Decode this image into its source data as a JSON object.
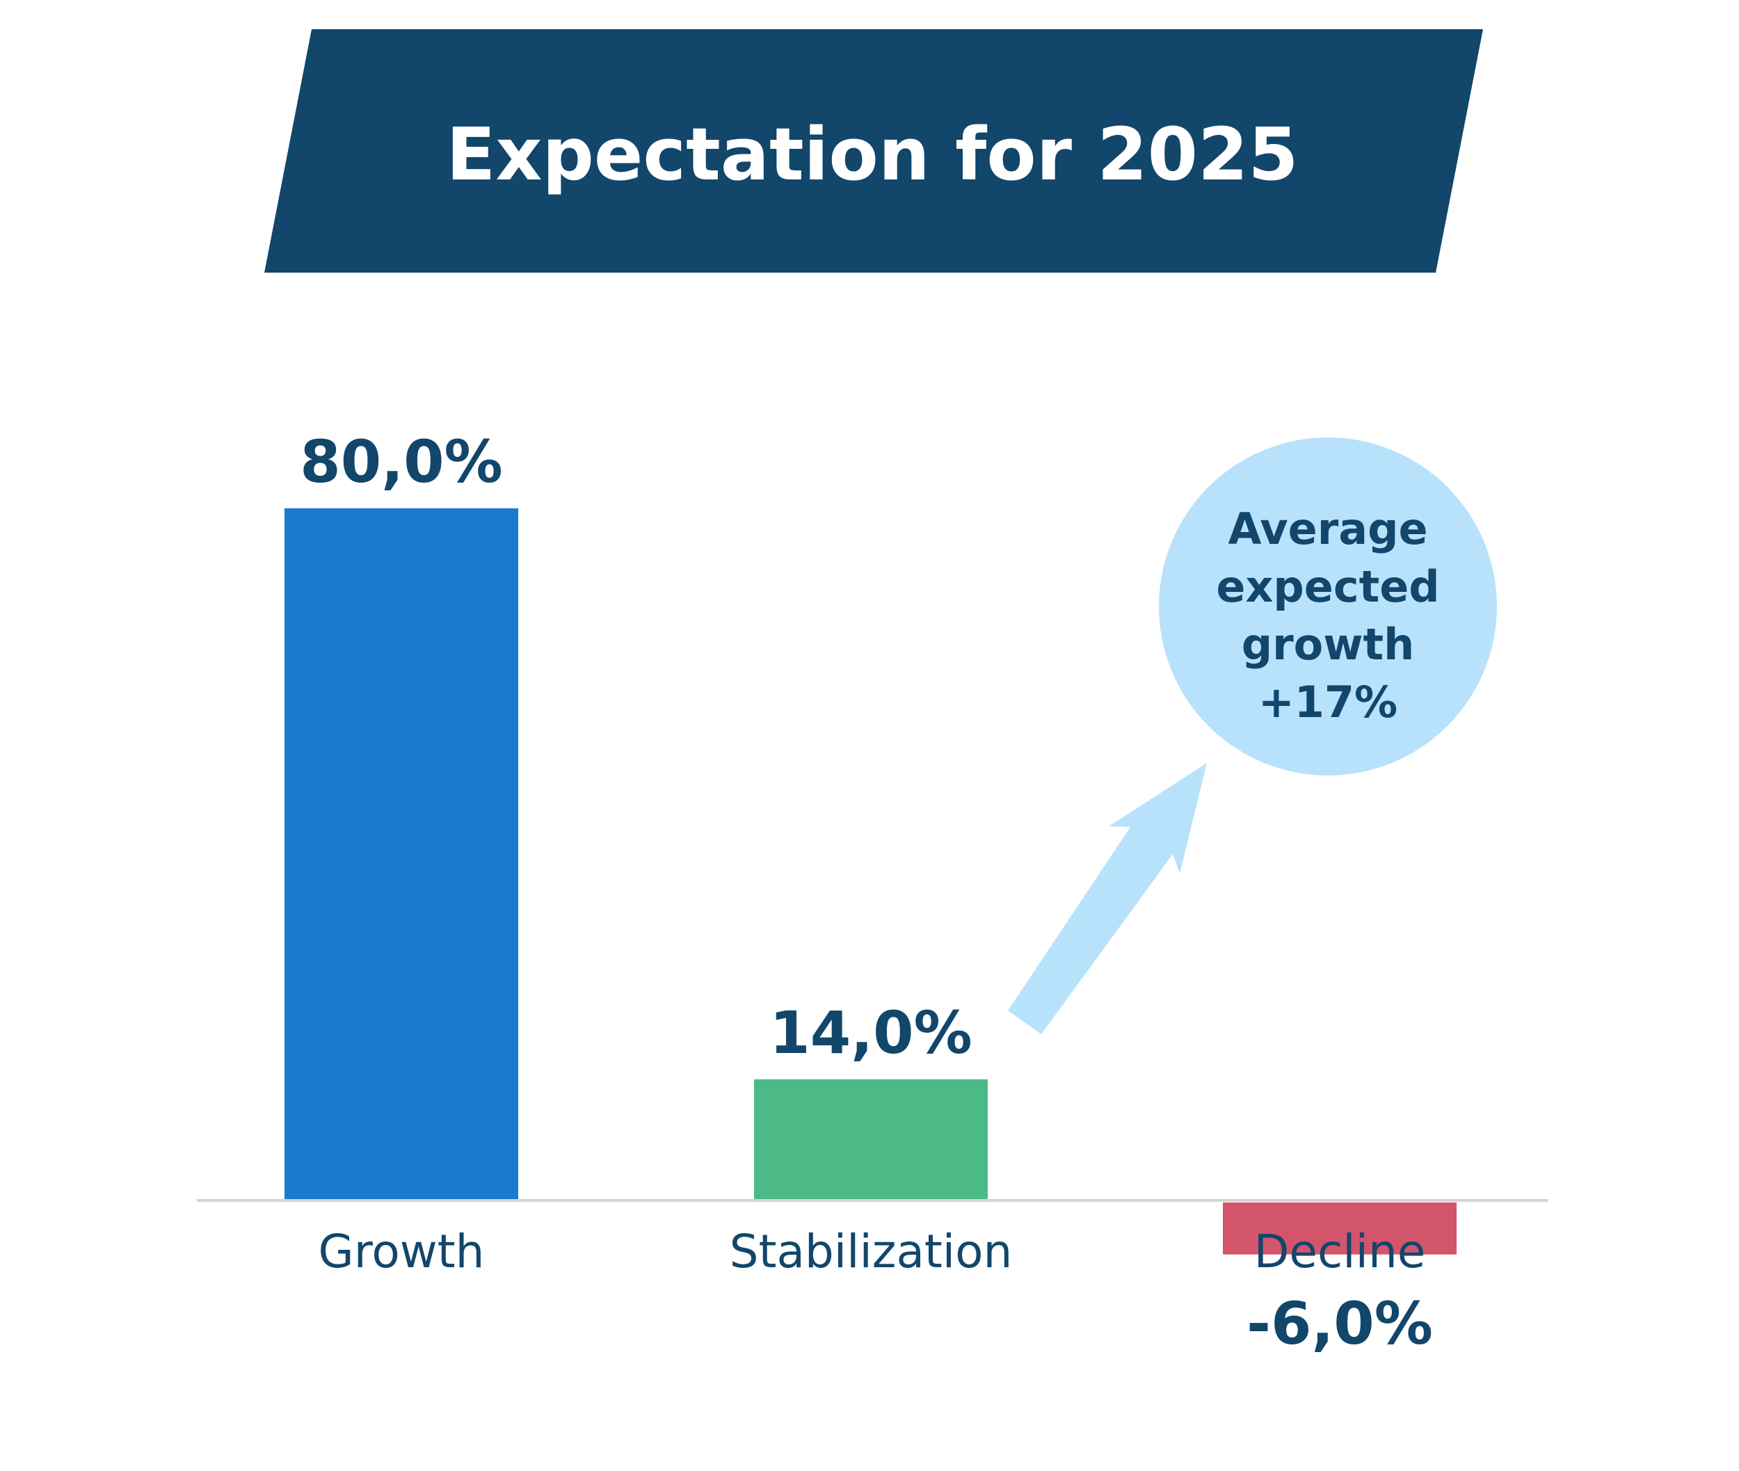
{
  "title": "Expectation for 2025",
  "colors": {
    "banner": "#12466b",
    "text": "#12466b",
    "growth": "#187bd0",
    "stabilization": "#4cba86",
    "decline": "#d2556b",
    "callout": "#b8e2fb",
    "baseline": "#d4d4d4"
  },
  "chart_data": {
    "type": "bar",
    "categories": [
      "Growth",
      "Stabilization",
      "Decline"
    ],
    "values": [
      80.0,
      14.0,
      -6.0
    ],
    "value_labels": [
      "80,0%",
      "14,0%",
      "-6,0%"
    ],
    "title": "Expectation for 2025",
    "xlabel": "",
    "ylabel": "",
    "ylim": [
      -6,
      80
    ],
    "grid": false,
    "legend": "none",
    "annotations": [
      {
        "lines": [
          "Average",
          "expected",
          "growth",
          "+17%"
        ],
        "style": "circle-callout",
        "icon": "arrow-up-right-icon"
      }
    ]
  }
}
